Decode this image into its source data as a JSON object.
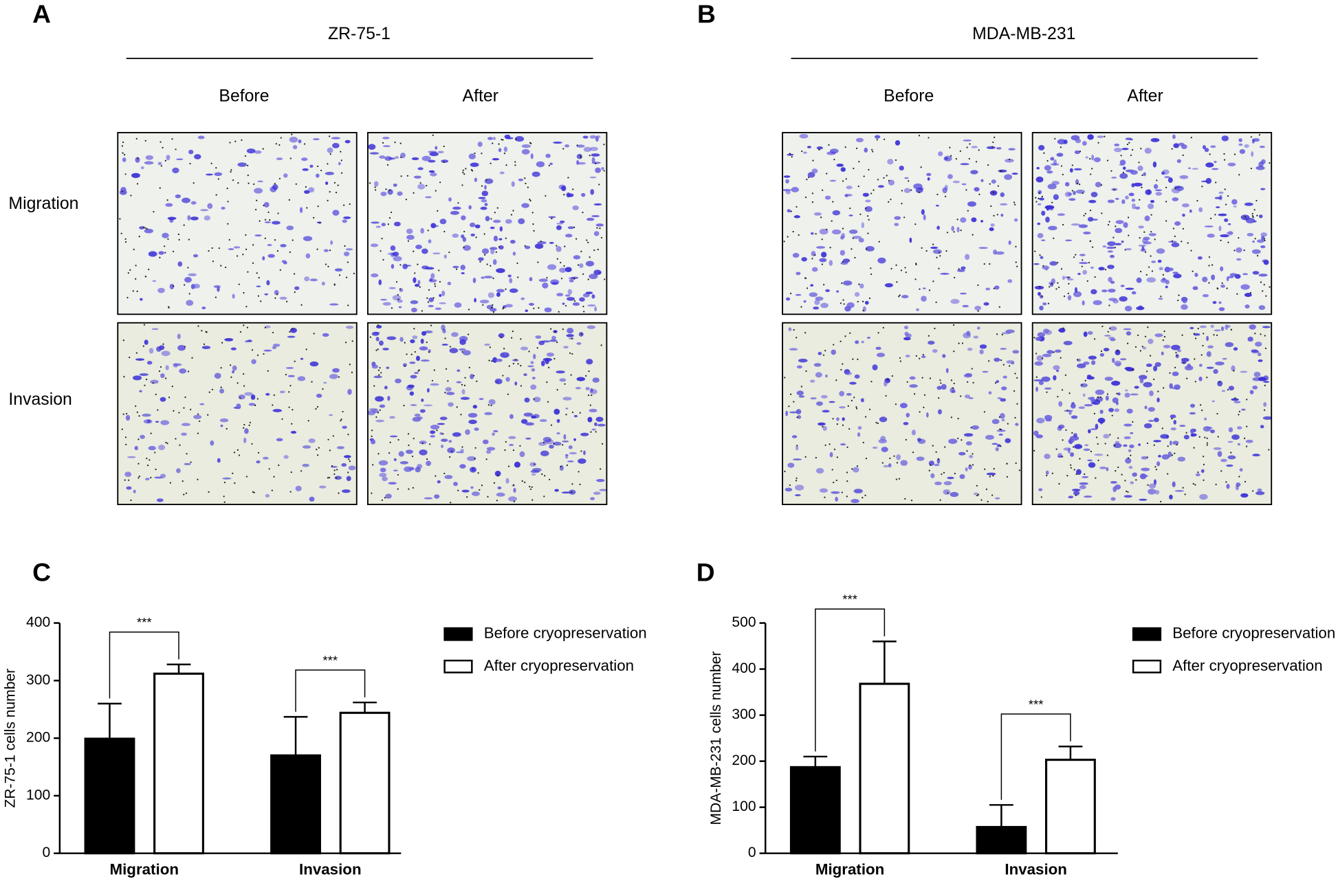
{
  "row_labels": [
    "Migration",
    "Invasion"
  ],
  "panels": [
    {
      "letter": "A",
      "title": "ZR-75-1",
      "columns": [
        "Before",
        "After"
      ]
    },
    {
      "letter": "B",
      "title": "MDA-MB-231",
      "columns": [
        "Before",
        "After"
      ]
    }
  ],
  "chart_data": [
    {
      "type": "bar",
      "letter": "C",
      "ylabel": "ZR-75-1 cells number",
      "categories": [
        "Migration",
        "Invasion"
      ],
      "series": [
        {
          "name": "Before cryopreservation",
          "color": "#000000",
          "values": [
            199,
            170
          ],
          "errors": [
            61,
            67
          ]
        },
        {
          "name": "After cryopreservation",
          "color": "#ffffff",
          "values": [
            312,
            244
          ],
          "errors": [
            16,
            18
          ]
        }
      ],
      "ylim": [
        0,
        400
      ],
      "yticks": [
        0,
        100,
        200,
        300,
        400
      ],
      "annotations": [
        "***",
        "***"
      ]
    },
    {
      "type": "bar",
      "letter": "D",
      "ylabel": "MDA-MB-231 cells number",
      "categories": [
        "Migration",
        "Invasion"
      ],
      "series": [
        {
          "name": "Before cryopreservation",
          "color": "#000000",
          "values": [
            187,
            57
          ],
          "errors": [
            23,
            48
          ]
        },
        {
          "name": "After cryopreservation",
          "color": "#ffffff",
          "values": [
            368,
            203
          ],
          "errors": [
            92,
            29
          ]
        }
      ],
      "ylim": [
        0,
        500
      ],
      "yticks": [
        0,
        100,
        200,
        300,
        400,
        500
      ],
      "annotations": [
        "***",
        "***"
      ]
    }
  ]
}
